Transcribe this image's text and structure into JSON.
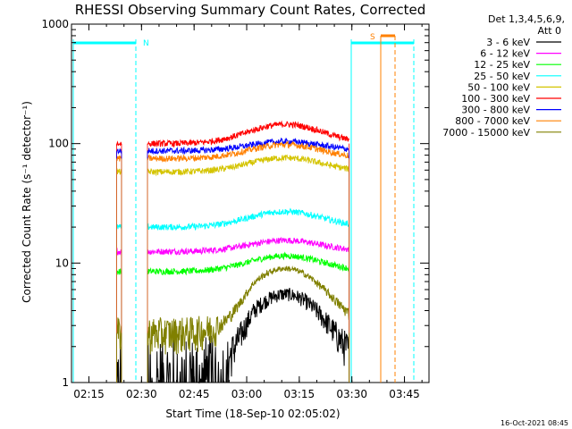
{
  "chart_data": {
    "type": "line",
    "title": "RHESSI Observing Summary Count Rates, Corrected",
    "xlabel": "Start Time (18-Sep-10 02:05:02)",
    "ylabel": "Corrected Count Rate (s⁻¹ detector⁻¹)",
    "xlim": [
      5.03,
      107
    ],
    "ylim": [
      1,
      1000
    ],
    "yscale": "log",
    "x_ticks": [
      {
        "t": 10,
        "label": "02:15"
      },
      {
        "t": 25,
        "label": "02:30"
      },
      {
        "t": 40,
        "label": "02:45"
      },
      {
        "t": 55,
        "label": "03:00"
      },
      {
        "t": 70,
        "label": "03:15"
      },
      {
        "t": 85,
        "label": "03:30"
      },
      {
        "t": 100,
        "label": "03:45"
      }
    ],
    "y_ticks": [
      {
        "v": 1,
        "label": "1"
      },
      {
        "v": 10,
        "label": "10"
      },
      {
        "v": 100,
        "label": "100"
      },
      {
        "v": 1000,
        "label": "1000"
      }
    ],
    "legend_title": [
      "Det 1,3,4,5,6,9,",
      "Att 0"
    ],
    "legend_placement": "right",
    "series": [
      {
        "name": "3 - 6 keV",
        "color": "#000000",
        "base": 1.0,
        "peak": 5.5
      },
      {
        "name": "6 - 12 keV",
        "color": "#ff00ff",
        "base": 12.5,
        "peak": 15.5
      },
      {
        "name": "12 - 25 keV",
        "color": "#00ff00",
        "base": 8.5,
        "peak": 11.5
      },
      {
        "name": "25 - 50 keV",
        "color": "#00ffff",
        "base": 20,
        "peak": 27
      },
      {
        "name": "50 - 100 keV",
        "color": "#d4c400",
        "base": 58,
        "peak": 76
      },
      {
        "name": "100 - 300 keV",
        "color": "#ff0000",
        "base": 100,
        "peak": 145
      },
      {
        "name": "300 - 800 keV",
        "color": "#0000ff",
        "base": 87,
        "peak": 104
      },
      {
        "name": "800 - 7000 keV",
        "color": "#ff8000",
        "base": 75,
        "peak": 98
      },
      {
        "name": "7000 - 15000 keV",
        "color": "#808000",
        "base": 2.6,
        "peak": 9.0
      }
    ],
    "flags": [
      {
        "label": "N",
        "color": "#00ffff"
      },
      {
        "label": "S",
        "color": "#ff8000"
      }
    ],
    "date_stamp": "16-Oct-2021 08:45"
  }
}
